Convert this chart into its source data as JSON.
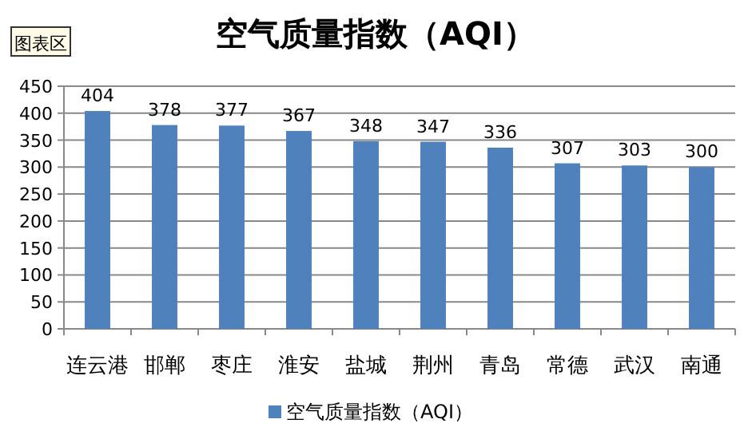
{
  "chart_data": {
    "type": "bar",
    "title": "空气质量指数（AQI）",
    "categories": [
      "连云港",
      "邯郸",
      "枣庄",
      "淮安",
      "盐城",
      "荆州",
      "青岛",
      "常德",
      "武汉",
      "南通"
    ],
    "series": [
      {
        "name": "空气质量指数（AQI）",
        "color": "#4f81bd",
        "values": [
          404,
          378,
          377,
          367,
          348,
          347,
          336,
          307,
          303,
          300
        ]
      }
    ],
    "ylim": [
      0,
      450
    ],
    "yticks": [
      0,
      50,
      100,
      150,
      200,
      250,
      300,
      350,
      400,
      450
    ],
    "grid": "y",
    "legend": "bottom",
    "data_labels": true,
    "annotations": [
      "图表区"
    ]
  }
}
